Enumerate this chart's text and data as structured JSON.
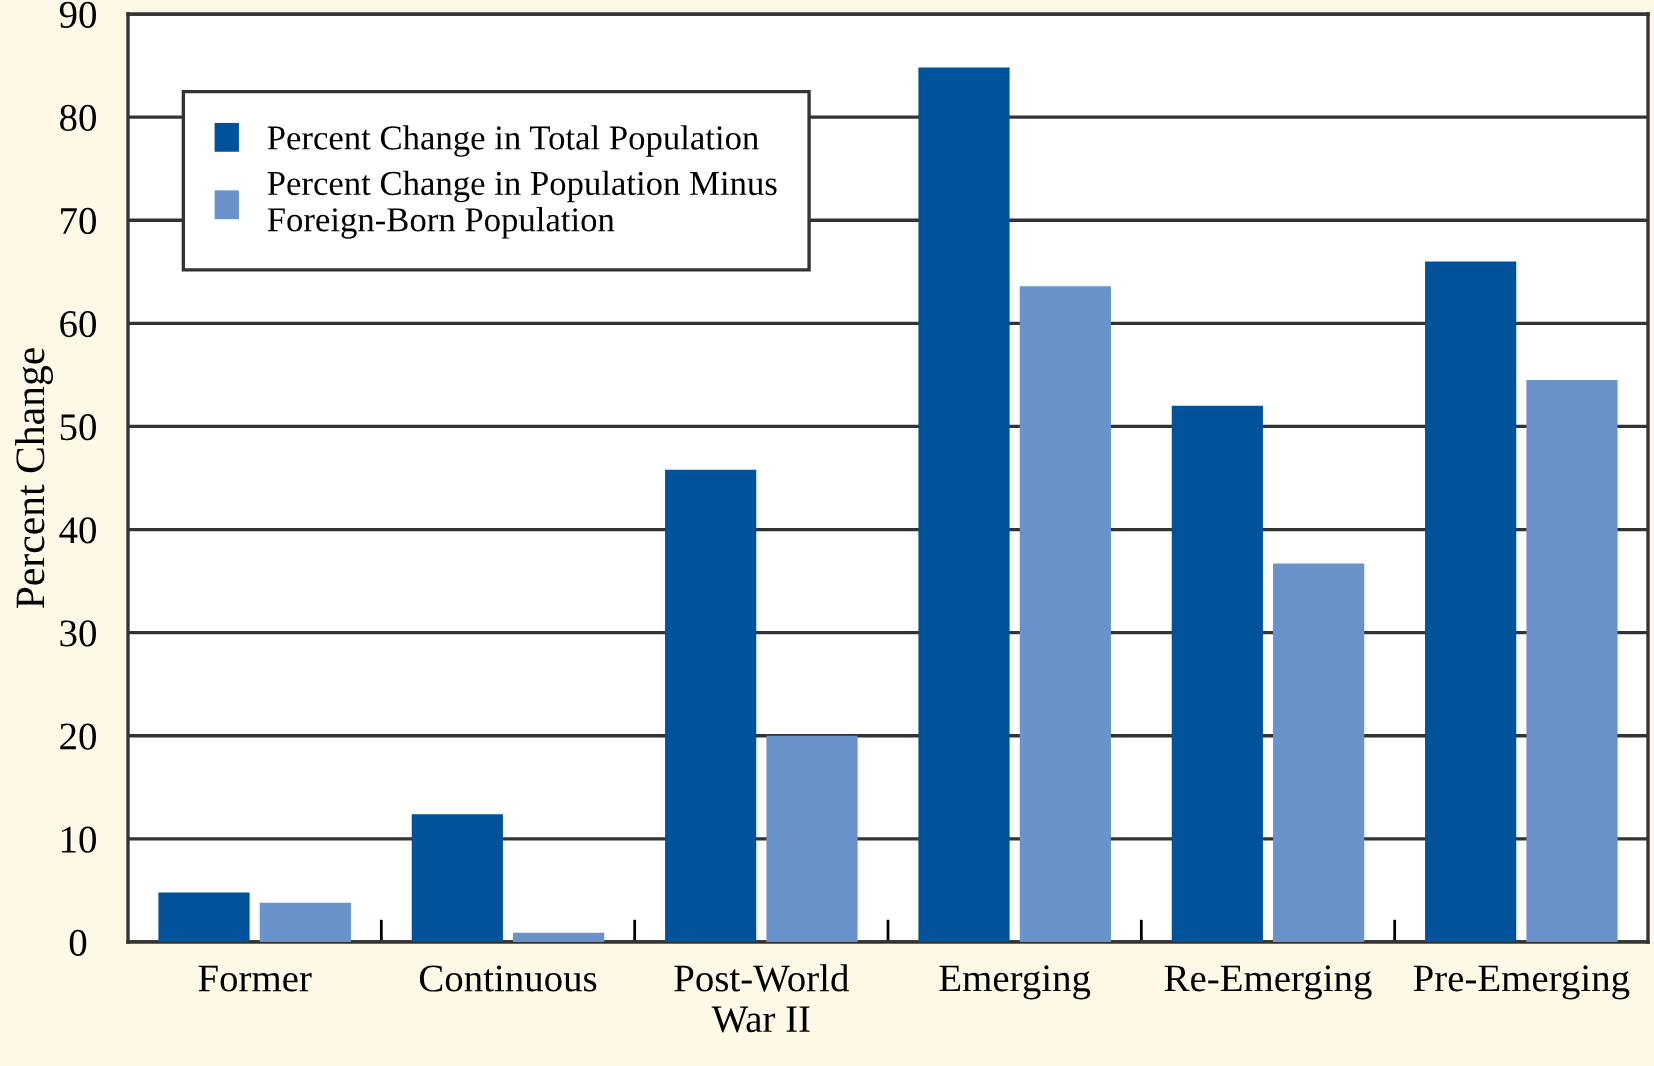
{
  "chart_data": {
    "type": "bar",
    "ylabel": "Percent Change",
    "categories": [
      "Former",
      "Continuous",
      "Post-World\nWar II",
      "Emerging",
      "Re-Emerging",
      "Pre-Emerging"
    ],
    "series": [
      {
        "name": "Percent Change in Total Population",
        "color": "#00529b",
        "values": [
          4.8,
          12.4,
          45.8,
          84.8,
          52.0,
          66.0
        ]
      },
      {
        "name": "Percent Change in Population Minus\nForeign-Born Population",
        "color": "#6a93cb",
        "values": [
          3.8,
          0.9,
          20.0,
          63.6,
          36.7,
          54.5
        ]
      }
    ],
    "ylim": [
      0,
      90
    ],
    "yticks": [
      0,
      10,
      20,
      30,
      40,
      50,
      60,
      70,
      80,
      90
    ],
    "grid": "y",
    "legend": "top left"
  }
}
